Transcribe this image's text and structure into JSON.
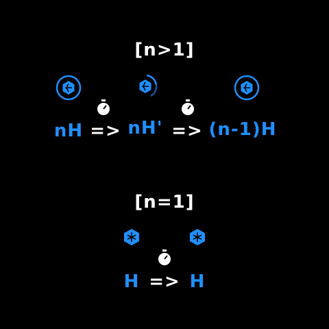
{
  "colors": {
    "accent": "#1e90ff",
    "text": "#ffffff",
    "background": "#000000"
  },
  "top_case": {
    "condition": "[n>1]",
    "left_term": "nH",
    "arrow1": "=>",
    "middle_term": "nH'",
    "arrow2": "=>",
    "right_term": "(n-1)H",
    "icons": [
      "hexagon-tile-icon",
      "hexagon-tile-spinning-icon",
      "hexagon-tile-icon",
      "stopwatch-icon",
      "stopwatch-icon"
    ]
  },
  "bottom_case": {
    "condition": "[n=1]",
    "left_term": "H",
    "arrow": "=>",
    "right_term": "H",
    "icons": [
      "hexagon-tile-icon",
      "hexagon-tile-icon",
      "stopwatch-icon"
    ]
  }
}
